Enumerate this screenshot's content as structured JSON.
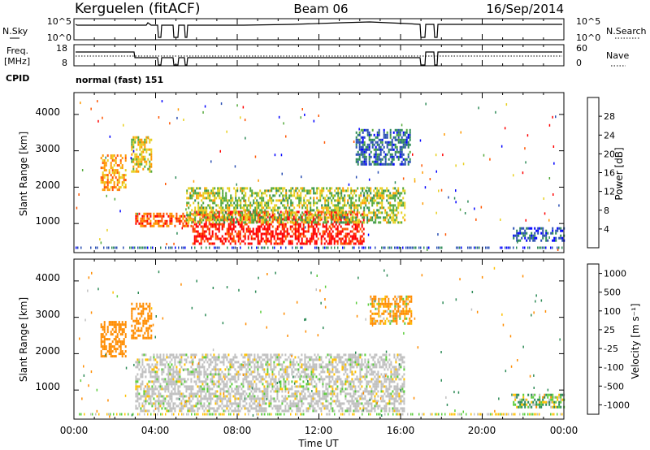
{
  "header": {
    "station": "Kerguelen (fitACF)",
    "beam": "Beam 06",
    "date": "16/Sep/2014"
  },
  "params": {
    "nsky_label": "N.Sky",
    "nsky_ticks": [
      "10^5",
      "10^0"
    ],
    "nsearch_label": "N.Search",
    "nsearch_ticks": [
      "10^5",
      "10^0"
    ],
    "freq_label": "Freq.",
    "freq_unit": "[MHz]",
    "freq_ticks": [
      "18",
      "8"
    ],
    "nave_label": "Nave",
    "nave_ticks": [
      "60",
      "0"
    ],
    "cpid_label": "CPID",
    "cpid_value": "normal (fast) 151"
  },
  "time_axis": {
    "label": "Time UT",
    "ticks": [
      "00:00",
      "04:00",
      "08:00",
      "12:00",
      "16:00",
      "20:00",
      "00:00"
    ],
    "range_hours": [
      0,
      24
    ]
  },
  "chart_data": [
    {
      "type": "heatmap",
      "panel": "power",
      "ylabel": "Slant Range [km]",
      "yticks": [
        "1000",
        "2000",
        "3000",
        "4000"
      ],
      "ylim": [
        200,
        4600
      ],
      "colorbar": {
        "label": "Power [dB]",
        "ticks": [
          "4",
          "8",
          "12",
          "16",
          "20",
          "24",
          "28"
        ],
        "range": [
          0,
          32
        ],
        "colors": [
          "#0000ff",
          "#2a4fb3",
          "#2e8b57",
          "#55aa3c",
          "#e8d020",
          "#ff9900",
          "#ff5500",
          "#ff0000"
        ]
      },
      "regions": [
        {
          "t": [
            1.3,
            2.5
          ],
          "range_km": [
            1900,
            2900
          ],
          "value": 22
        },
        {
          "t": [
            2.8,
            3.8
          ],
          "range_km": [
            2400,
            3400
          ],
          "value": 18
        },
        {
          "t": [
            3.0,
            5.8
          ],
          "range_km": [
            900,
            1300
          ],
          "value": 26
        },
        {
          "t": [
            5.8,
            14.2
          ],
          "range_km": [
            450,
            1350
          ],
          "value": 30
        },
        {
          "t": [
            5.5,
            16.2
          ],
          "range_km": [
            1000,
            2000
          ],
          "value": 16
        },
        {
          "t": [
            13.8,
            16.5
          ],
          "range_km": [
            2600,
            3600
          ],
          "value": 8
        },
        {
          "t": [
            21.5,
            24.0
          ],
          "range_km": [
            500,
            900
          ],
          "value": 6
        }
      ]
    },
    {
      "type": "heatmap",
      "panel": "velocity",
      "ylabel": "Slant Range [km]",
      "yticks": [
        "1000",
        "2000",
        "3000",
        "4000"
      ],
      "ylim": [
        200,
        4600
      ],
      "colorbar": {
        "label": "Velocity [m s⁻¹]",
        "ticks": [
          "1000",
          "500",
          "100",
          "25",
          "-25",
          "-100",
          "-500",
          "-1000"
        ],
        "colors": [
          "#1f3fbf",
          "#2e8b57",
          "#5ccd3c",
          "#c0c0c0",
          "#ffc000",
          "#ff8c00",
          "#ff5500",
          "#ff0000"
        ]
      },
      "regions": [
        {
          "t": [
            1.3,
            2.5
          ],
          "range_km": [
            1900,
            2900
          ],
          "value": -300
        },
        {
          "t": [
            2.8,
            3.8
          ],
          "range_km": [
            2400,
            3400
          ],
          "value": -300
        },
        {
          "t": [
            3.0,
            16.2
          ],
          "range_km": [
            450,
            2000
          ],
          "value": 0
        },
        {
          "t": [
            14.5,
            16.5
          ],
          "range_km": [
            2800,
            3600
          ],
          "value": -150
        },
        {
          "t": [
            21.5,
            24.0
          ],
          "range_km": [
            500,
            900
          ],
          "value": 80
        }
      ]
    }
  ]
}
